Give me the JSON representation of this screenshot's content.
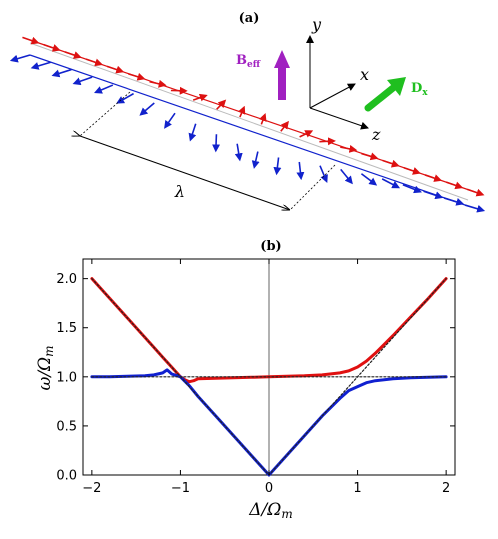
{
  "panel_a": {
    "label": "(a)",
    "axes": {
      "y": "y",
      "x": "x",
      "z": "z"
    },
    "b_eff": {
      "main": "B",
      "sub": "eff",
      "color": "#a020c0"
    },
    "d_x": {
      "main": "D",
      "sub": "x",
      "color": "#1fbf1f"
    },
    "wavelength_symbol": "λ",
    "red_color": "#dd1111",
    "blue_color": "#1122cc"
  },
  "panel_b": {
    "label": "(b)",
    "ylabel_main": "ω/Ω",
    "ylabel_sub": "m",
    "xlabel_main": "Δ/Ω",
    "xlabel_sub": "m"
  },
  "chart_data": {
    "type": "line",
    "xlim": [
      -2.1,
      2.1
    ],
    "ylim": [
      0,
      2.2
    ],
    "xticks": [
      -2,
      -1,
      0,
      1,
      2
    ],
    "xtick_labels": [
      "−2",
      "−1",
      "0",
      "1",
      "2"
    ],
    "yticks": [
      0,
      0.5,
      1.0,
      1.5,
      2.0
    ],
    "ytick_labels": [
      "0.0",
      "0.5",
      "1.0",
      "1.5",
      "2.0"
    ],
    "grid": false,
    "series": [
      {
        "color": "#e01010",
        "x": [
          -2.0,
          -1.8,
          -1.6,
          -1.4,
          -1.3,
          -1.2,
          -1.1,
          -1.0,
          -0.95,
          -0.9,
          -0.85,
          -0.8,
          -0.6,
          -0.4,
          -0.2,
          0.0,
          0.2,
          0.4,
          0.6,
          0.8,
          0.9,
          1.0,
          1.1,
          1.2,
          1.4,
          1.6,
          1.8,
          2.0
        ],
        "y": [
          2.0,
          1.8,
          1.6,
          1.4,
          1.3,
          1.2,
          1.1,
          1.0,
          0.97,
          0.95,
          0.96,
          0.98,
          0.985,
          0.99,
          0.995,
          1.0,
          1.005,
          1.01,
          1.02,
          1.04,
          1.06,
          1.1,
          1.16,
          1.24,
          1.42,
          1.61,
          1.8,
          2.0
        ]
      },
      {
        "color": "#1020d0",
        "x": [
          -2.0,
          -1.8,
          -1.6,
          -1.4,
          -1.3,
          -1.2,
          -1.15,
          -1.1,
          -1.0,
          -0.9,
          -0.8,
          -0.6,
          -0.4,
          -0.2,
          0.0,
          0.2,
          0.4,
          0.6,
          0.8,
          0.9,
          1.0,
          1.1,
          1.2,
          1.4,
          1.6,
          1.8,
          2.0
        ],
        "y": [
          1.0,
          1.0,
          1.005,
          1.01,
          1.02,
          1.04,
          1.07,
          1.03,
          1.0,
          0.91,
          0.8,
          0.6,
          0.4,
          0.2,
          0.0,
          0.2,
          0.4,
          0.6,
          0.78,
          0.86,
          0.9,
          0.94,
          0.96,
          0.98,
          0.99,
          0.995,
          1.0
        ]
      },
      {
        "color": "#222222",
        "x": [
          -2.0,
          0.0,
          2.0
        ],
        "y": [
          2.0,
          0.0,
          2.0
        ]
      },
      {
        "color": "#222222",
        "x": [
          -2.0,
          2.0
        ],
        "y": [
          1.0,
          1.0
        ]
      }
    ]
  }
}
